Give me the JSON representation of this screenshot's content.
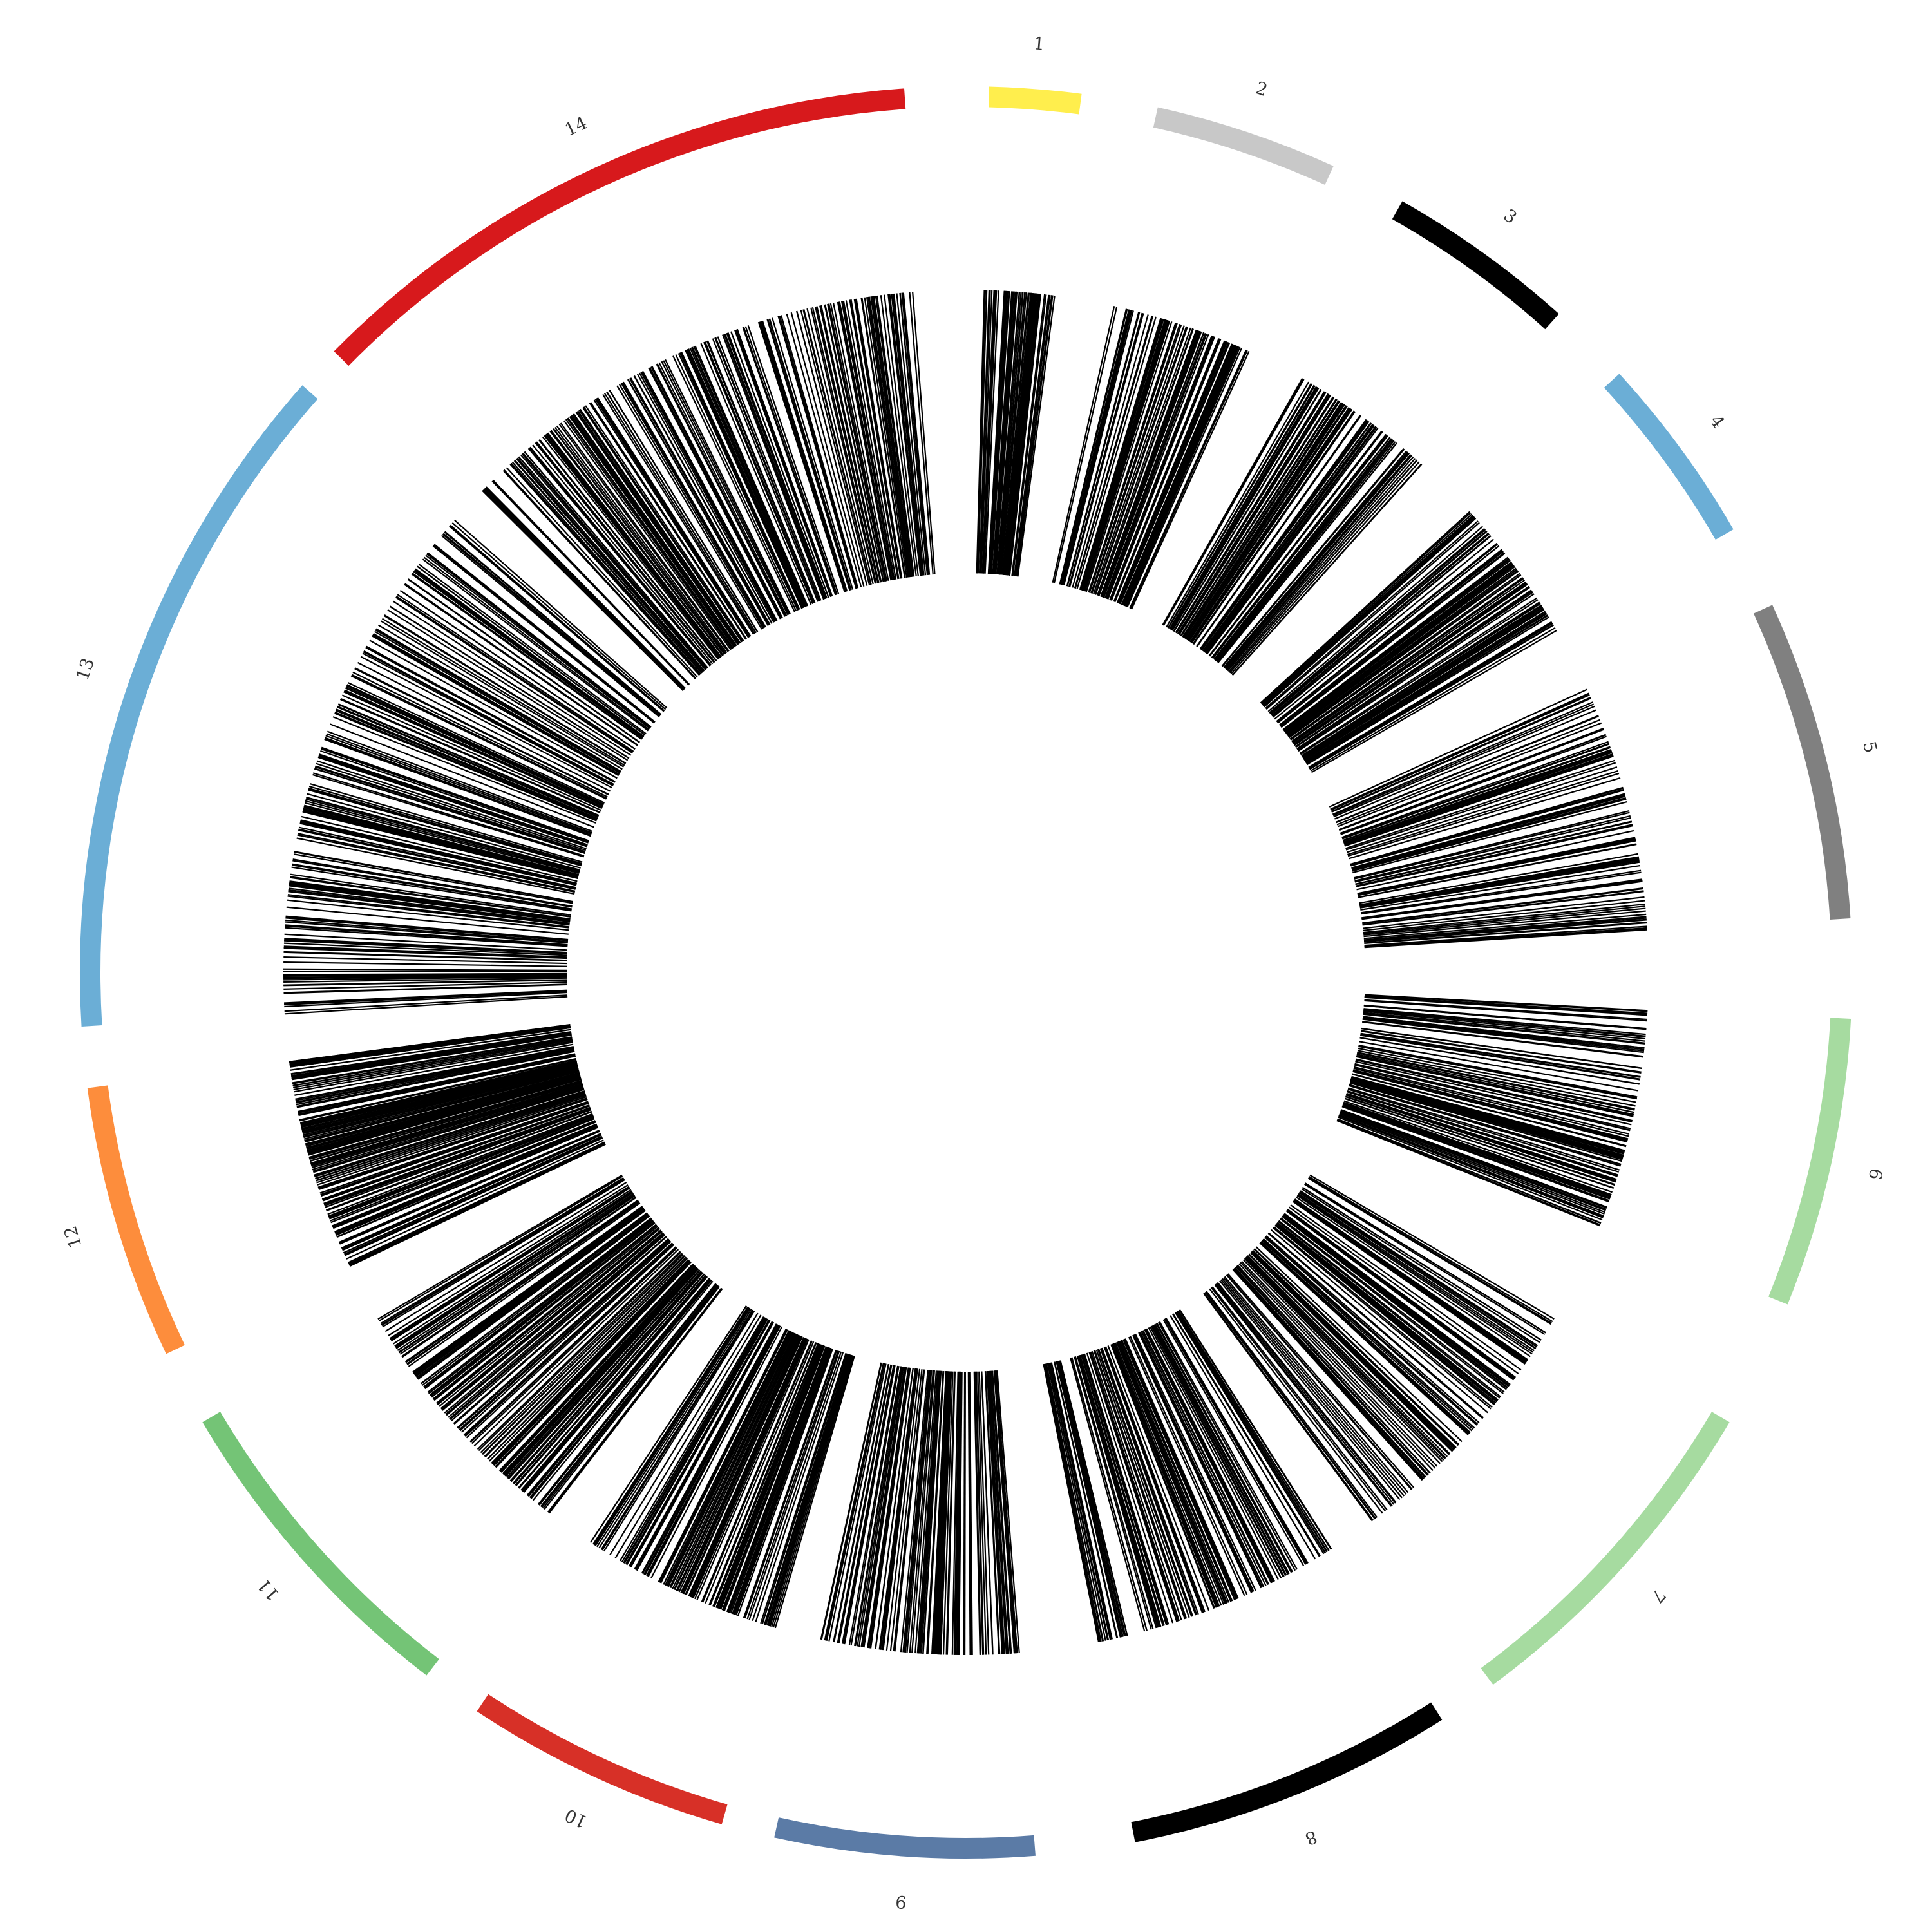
{
  "chart_data": {
    "type": "circos",
    "title": "",
    "track": "feature density (radial lines)",
    "segments": [
      {
        "label": "1",
        "color": "#ffee4d",
        "feature_count": 70
      },
      {
        "label": "2",
        "color": "#c8c8c8",
        "feature_count": 90
      },
      {
        "label": "3",
        "color": "#000000",
        "feature_count": 110
      },
      {
        "label": "4",
        "color": "#6baed6",
        "feature_count": 110
      },
      {
        "label": "5",
        "color": "#808080",
        "feature_count": 120
      },
      {
        "label": "6",
        "color": "#a6dba0",
        "feature_count": 130
      },
      {
        "label": "7",
        "color": "#a6dba0",
        "feature_count": 140
      },
      {
        "label": "8",
        "color": "#000000",
        "feature_count": 140
      },
      {
        "label": "9",
        "color": "#5b7ba6",
        "feature_count": 130
      },
      {
        "label": "10",
        "color": "#d73027",
        "feature_count": 140
      },
      {
        "label": "11",
        "color": "#74c476",
        "feature_count": 170
      },
      {
        "label": "12",
        "color": "#fd8d3c",
        "feature_count": 190
      },
      {
        "label": "13",
        "color": "#6baed6",
        "feature_count": 220
      },
      {
        "label": "14",
        "color": "#d7191c",
        "feature_count": 250
      }
    ]
  }
}
